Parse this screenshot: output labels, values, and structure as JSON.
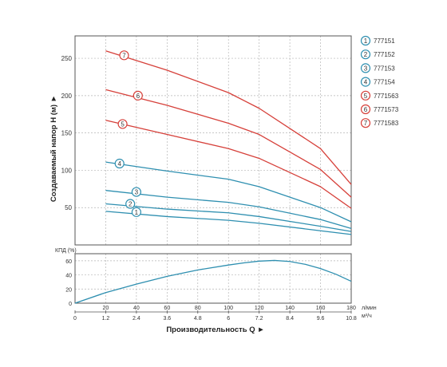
{
  "chart_data": [
    {
      "type": "line",
      "ylabel": "Создаваемый напор H (м) ►",
      "xlim": [
        0,
        180
      ],
      "ylim": [
        0,
        280
      ],
      "y_ticks": [
        50,
        100,
        150,
        200,
        250
      ],
      "x_ticks": [
        0,
        20,
        40,
        60,
        80,
        100,
        120,
        140,
        160,
        180
      ],
      "grid": true,
      "legend_position": "right",
      "series": [
        {
          "marker": "1",
          "name": "777151",
          "color": "#2e8fb0",
          "x": [
            20,
            60,
            100,
            120,
            160,
            180
          ],
          "y": [
            45,
            38,
            33,
            29,
            19,
            14
          ],
          "label_at": [
            40,
            44
          ]
        },
        {
          "marker": "2",
          "name": "777152",
          "color": "#2e8fb0",
          "x": [
            20,
            60,
            100,
            120,
            160,
            180
          ],
          "y": [
            55,
            48,
            43,
            38,
            25,
            18
          ],
          "label_at": [
            36,
            55
          ]
        },
        {
          "marker": "3",
          "name": "777153",
          "color": "#2e8fb0",
          "x": [
            20,
            60,
            100,
            120,
            160,
            180
          ],
          "y": [
            73,
            64,
            57,
            51,
            34,
            22
          ],
          "label_at": [
            40,
            71
          ]
        },
        {
          "marker": "4",
          "name": "777154",
          "color": "#2e8fb0",
          "x": [
            20,
            60,
            100,
            120,
            160,
            180
          ],
          "y": [
            111,
            99,
            88,
            78,
            50,
            31
          ],
          "label_at": [
            29,
            109
          ]
        },
        {
          "marker": "5",
          "name": "7771563",
          "color": "#d6403a",
          "x": [
            20,
            60,
            100,
            120,
            160,
            180
          ],
          "y": [
            167,
            148,
            129,
            116,
            78,
            49
          ],
          "label_at": [
            31,
            162
          ]
        },
        {
          "marker": "6",
          "name": "7771573",
          "color": "#d6403a",
          "x": [
            20,
            60,
            100,
            120,
            160,
            180
          ],
          "y": [
            208,
            187,
            163,
            148,
            101,
            64
          ],
          "label_at": [
            41,
            200
          ]
        },
        {
          "marker": "7",
          "name": "7771583",
          "color": "#d6403a",
          "x": [
            20,
            60,
            100,
            120,
            160,
            180
          ],
          "y": [
            260,
            234,
            204,
            183,
            129,
            81
          ],
          "label_at": [
            32,
            254
          ]
        }
      ]
    },
    {
      "type": "line",
      "ylabel": "КПД (%)",
      "xlim": [
        0,
        180
      ],
      "ylim": [
        0,
        70
      ],
      "y_ticks": [
        0,
        20,
        40,
        60
      ],
      "x_ticks": [
        0,
        20,
        40,
        60,
        80,
        100,
        120,
        140,
        160,
        180
      ],
      "grid": true,
      "series": [
        {
          "color": "#2e8fb0",
          "x": [
            0,
            20,
            40,
            60,
            80,
            100,
            110,
            120,
            130,
            140,
            150,
            160,
            170,
            180
          ],
          "y": [
            0,
            15,
            27,
            38,
            47,
            54,
            57,
            59.5,
            60.5,
            59,
            55,
            49,
            41,
            31
          ]
        }
      ]
    }
  ],
  "x_axis": {
    "lpm_labels": [
      "20",
      "40",
      "60",
      "80",
      "100",
      "120",
      "140",
      "160",
      "180"
    ],
    "lpm_unit": "л/мин",
    "m3h_labels": [
      "0",
      "1.2",
      "2.4",
      "3.6",
      "4.8",
      "6",
      "7.2",
      "8.4",
      "9.6",
      "10.8"
    ],
    "m3h_unit": "м³/ч",
    "title": "Производительность Q ►"
  },
  "colors": {
    "blue": "#2e8fb0",
    "red": "#d6403a",
    "grid": "#b5b5b5",
    "axis": "#555555"
  }
}
